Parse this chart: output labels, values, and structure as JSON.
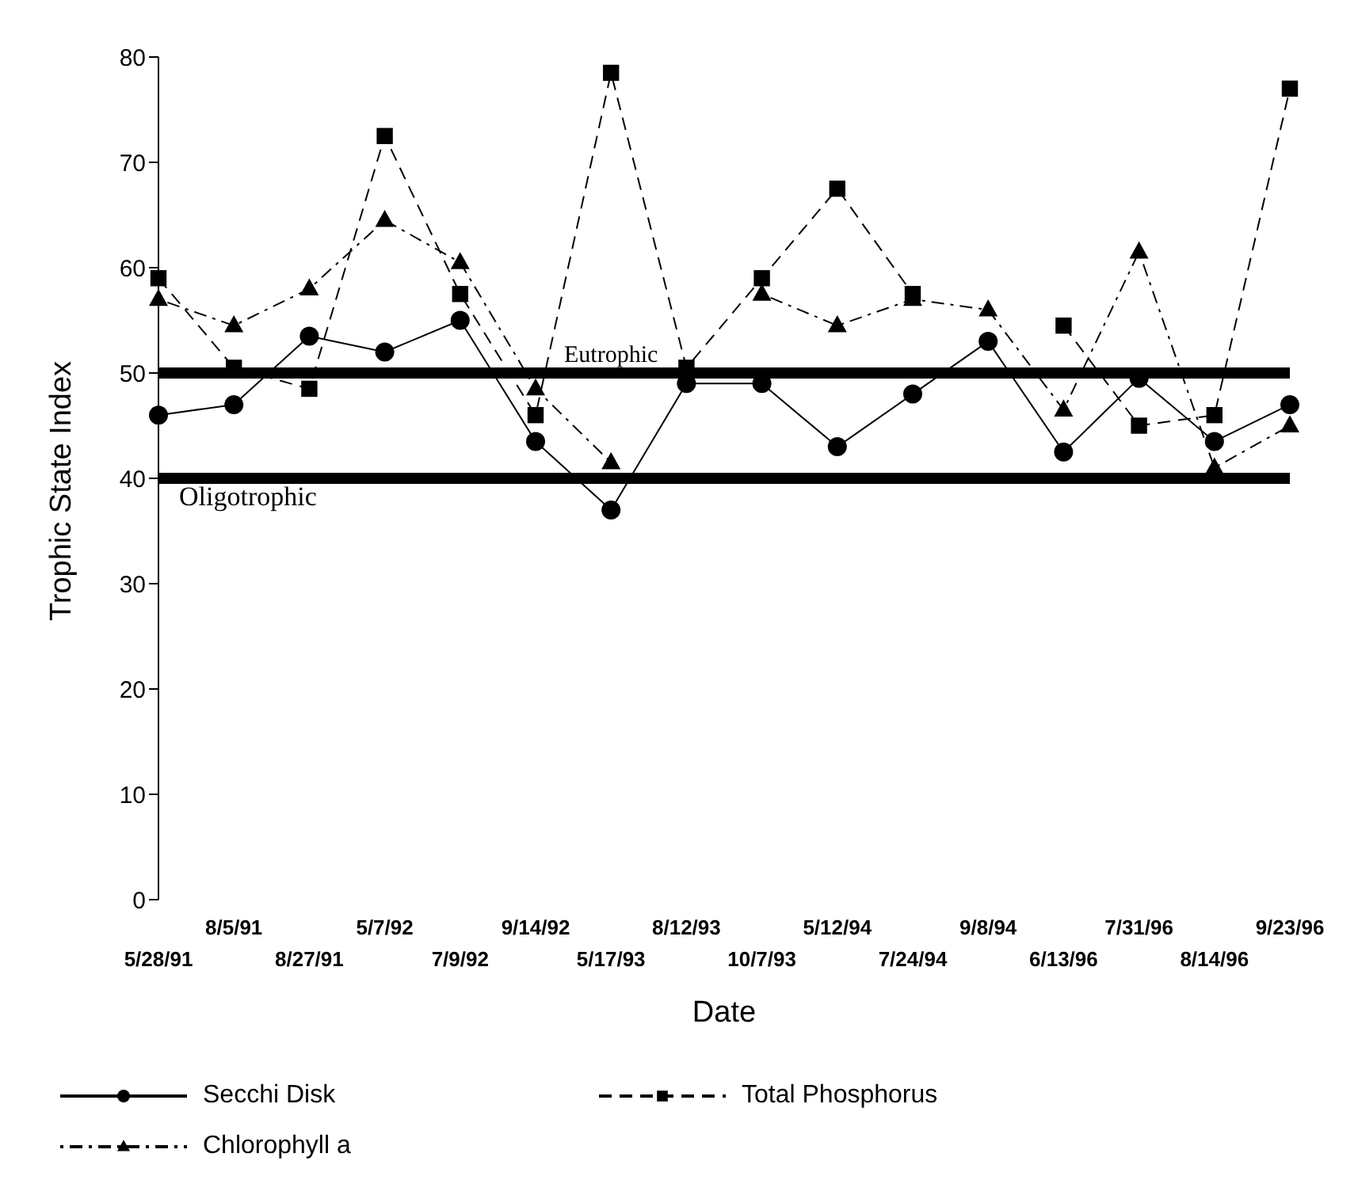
{
  "chart_data": {
    "type": "line",
    "xlabel": "Date",
    "ylabel": "Trophic State Index",
    "categories": [
      "5/28/91",
      "8/5/91",
      "8/27/91",
      "5/7/92",
      "7/9/92",
      "9/14/92",
      "5/17/93",
      "8/12/93",
      "10/7/93",
      "5/12/94",
      "7/24/94",
      "9/8/94",
      "6/13/96",
      "7/31/96",
      "8/14/96",
      "9/23/96"
    ],
    "series": [
      {
        "name": "Secchi Disk",
        "color": "#000000",
        "marker": "circle",
        "line_style": "solid",
        "values": [
          46,
          47,
          53.5,
          52,
          55,
          43.5,
          37,
          49,
          49,
          43,
          48,
          53,
          42.5,
          49.5,
          43.5,
          47
        ]
      },
      {
        "name": "Total Phosphorus",
        "color": "#000000",
        "marker": "square",
        "line_style": "dashed",
        "values": [
          59,
          50.5,
          48.5,
          72.5,
          57.5,
          46,
          78.5,
          50.5,
          59,
          67.5,
          57.5,
          null,
          54.5,
          45,
          46,
          77
        ]
      },
      {
        "name": "Chlorophyll a",
        "color": "#000000",
        "marker": "triangle",
        "line_style": "dotted",
        "values": [
          57,
          54.5,
          58,
          64.5,
          60.5,
          48.5,
          41.5,
          null,
          57.5,
          54.5,
          57,
          56,
          46.5,
          61.5,
          41,
          45
        ]
      }
    ],
    "ylim": [
      0,
      80
    ],
    "yticks": [
      0,
      10,
      20,
      30,
      40,
      50,
      60,
      70,
      80
    ],
    "grid": false,
    "legend": "bottom",
    "ref_lines": [
      {
        "axis": "y",
        "value": 50,
        "label": "Eutrophic",
        "color": "#000000"
      },
      {
        "axis": "y",
        "value": 40,
        "label": "Oligotrophic",
        "color": "#000000"
      }
    ]
  }
}
